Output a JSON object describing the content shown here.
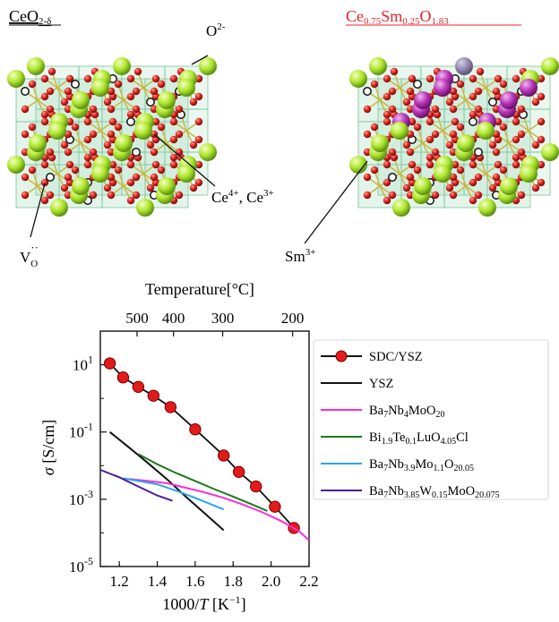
{
  "structures": {
    "left": {
      "title_base": "CeO",
      "title_sub": "2-δ",
      "o_base": "O",
      "o_sup": "2-",
      "ce_base1": "Ce",
      "ce_sup1": "4+",
      "ce_sep": ", Ce",
      "ce_sup2": "3+",
      "v_base": "V",
      "v_sub": "O",
      "v_sup": "··"
    },
    "right": {
      "title_parts": [
        "Ce",
        "0.75",
        "Sm",
        "0.25",
        "O",
        "1.83"
      ],
      "sm_base": "Sm",
      "sm_sup": "3+"
    },
    "colors": {
      "ce": "#aee62e",
      "o": "#d6201c",
      "sm": "#b736b6",
      "vac": "#ffffff",
      "box": "#9ad9b5",
      "title_right": "#e8232a"
    }
  },
  "chart_data": {
    "type": "line",
    "x_axis": {
      "label_text": "1000/",
      "label_var": "T",
      "label_unit": " [K",
      "label_unit_sup": "−1",
      "label_close": "]",
      "range": [
        1.1,
        2.2
      ],
      "ticks": [
        "1.2",
        "1.4",
        "1.6",
        "1.8",
        "2.0",
        "2.2"
      ]
    },
    "top_axis": {
      "label": "Temperature[°C]",
      "ticks": [
        "500",
        "400",
        "300",
        "200"
      ],
      "tick_celsius": [
        500,
        400,
        300,
        200
      ]
    },
    "y_axis": {
      "label_var": "σ",
      "label_unit": " [S/cm]",
      "scale": "log",
      "range": [
        1e-05,
        100
      ],
      "ticks": [
        {
          "base": "10",
          "exp": "1",
          "value": 10
        },
        {
          "base": "10",
          "exp": "-1",
          "value": 0.1
        },
        {
          "base": "10",
          "exp": "-3",
          "value": 0.001
        },
        {
          "base": "10",
          "exp": "-5",
          "value": 1e-05
        }
      ]
    },
    "legend_position": "right",
    "series": [
      {
        "name": "SDC/YSZ",
        "name_parts": [
          [
            "SDC/YSZ",
            ""
          ]
        ],
        "color": "#111111",
        "marker_color": "#e11b1b",
        "markers": true,
        "x": [
          1.15,
          1.22,
          1.3,
          1.38,
          1.47,
          1.6,
          1.75,
          1.83,
          1.92,
          2.02,
          2.12
        ],
        "y": [
          11,
          4.2,
          2.2,
          1.2,
          0.55,
          0.12,
          0.02,
          0.0065,
          0.0024,
          0.0006,
          0.00014
        ]
      },
      {
        "name": "YSZ",
        "name_parts": [
          [
            "YSZ",
            ""
          ]
        ],
        "color": "#111111",
        "markers": false,
        "x": [
          1.15,
          1.25,
          1.35,
          1.45,
          1.55,
          1.65,
          1.75
        ],
        "y": [
          0.1,
          0.035,
          0.012,
          0.004,
          0.0012,
          0.00038,
          0.00012
        ]
      },
      {
        "name": "Ba7Nb4MoO20",
        "name_parts": [
          [
            "Ba",
            ""
          ],
          [
            "7",
            "sub"
          ],
          [
            "Nb",
            ""
          ],
          [
            "4",
            "sub"
          ],
          [
            "MoO",
            ""
          ],
          [
            "20",
            "sub"
          ]
        ],
        "color": "#ff2bd6",
        "markers": false,
        "x": [
          1.25,
          1.35,
          1.45,
          1.55,
          1.65,
          1.75,
          1.85,
          1.95,
          2.05,
          2.15,
          2.2
        ],
        "y": [
          0.004,
          0.0035,
          0.003,
          0.0022,
          0.0016,
          0.0011,
          0.0007,
          0.00042,
          0.00023,
          0.00011,
          6e-05
        ]
      },
      {
        "name": "Bi1.9Te0.1LuO4.05Cl",
        "name_parts": [
          [
            "Bi",
            ""
          ],
          [
            "1.9",
            "sub"
          ],
          [
            "Te",
            ""
          ],
          [
            "0.1",
            "sub"
          ],
          [
            "LuO",
            ""
          ],
          [
            "4.05",
            "sub"
          ],
          [
            "Cl",
            ""
          ]
        ],
        "color": "#1d7a1d",
        "markers": false,
        "x": [
          1.3,
          1.4,
          1.5,
          1.6,
          1.7,
          1.8,
          1.9,
          1.98
        ],
        "y": [
          0.022,
          0.011,
          0.006,
          0.0035,
          0.002,
          0.0012,
          0.0007,
          0.00045
        ]
      },
      {
        "name": "Ba7Nb3.9Mo1.1O20.05",
        "name_parts": [
          [
            "Ba",
            ""
          ],
          [
            "7",
            "sub"
          ],
          [
            "Nb",
            ""
          ],
          [
            "3.9",
            "sub"
          ],
          [
            "Mo",
            ""
          ],
          [
            "1.1",
            "sub"
          ],
          [
            "O",
            ""
          ],
          [
            "20.05",
            "sub"
          ]
        ],
        "color": "#25a6f0",
        "markers": false,
        "x": [
          1.22,
          1.3,
          1.4,
          1.5,
          1.6,
          1.7,
          1.75
        ],
        "y": [
          0.0042,
          0.0035,
          0.0028,
          0.0018,
          0.0011,
          0.00065,
          0.0005
        ]
      },
      {
        "name": "Ba7Nb3.85W0.15MoO20.075",
        "name_parts": [
          [
            "Ba",
            ""
          ],
          [
            "7",
            "sub"
          ],
          [
            "Nb",
            ""
          ],
          [
            "3.85",
            "sub"
          ],
          [
            "W",
            ""
          ],
          [
            "0.15",
            "sub"
          ],
          [
            "MoO",
            ""
          ],
          [
            "20.075",
            "sub"
          ]
        ],
        "color": "#4b1e96",
        "markers": false,
        "x": [
          1.1,
          1.2,
          1.3,
          1.4,
          1.48
        ],
        "y": [
          0.0075,
          0.0045,
          0.0024,
          0.0013,
          0.0009
        ]
      }
    ]
  }
}
